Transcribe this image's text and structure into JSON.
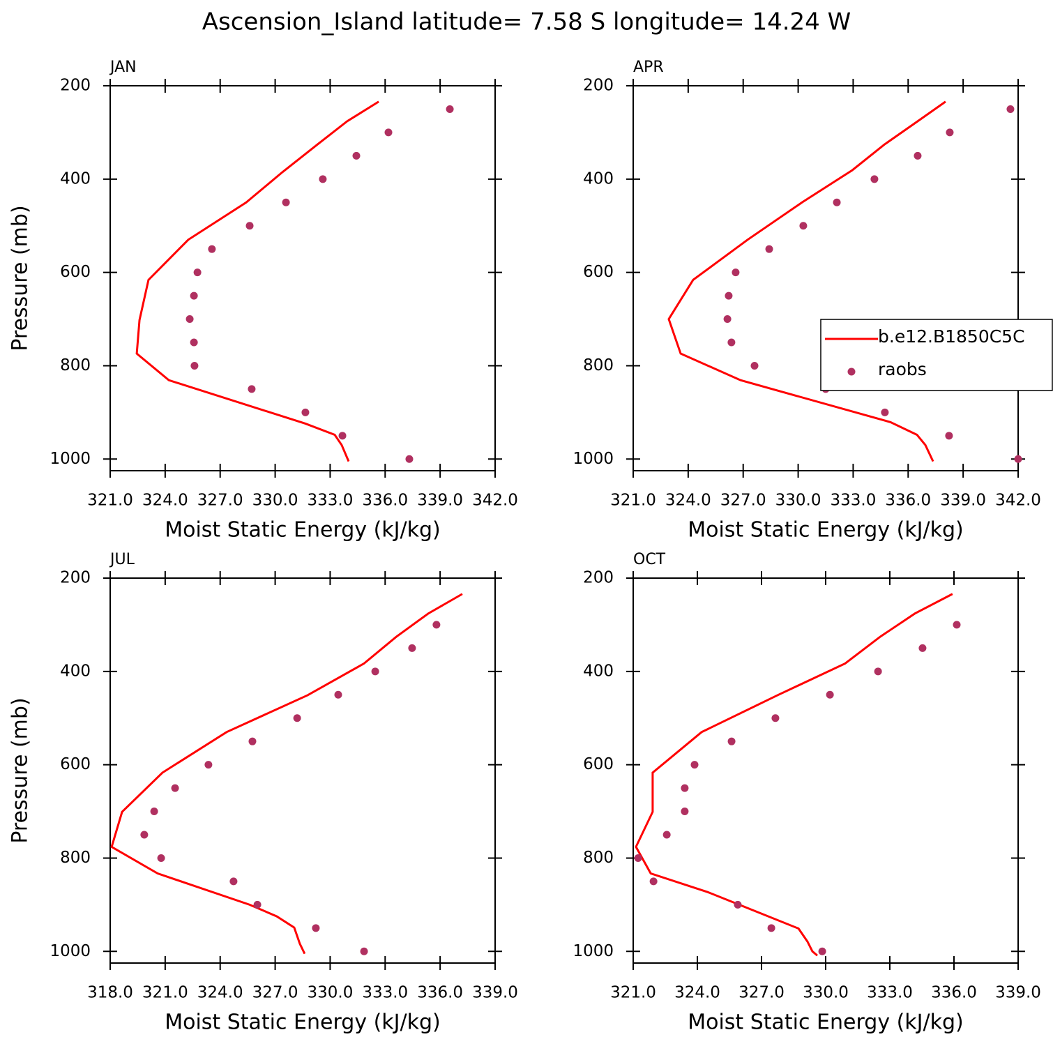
{
  "title": "Ascension_Island  latitude= 7.58 S longitude= 14.24 W",
  "chart_data": [
    {
      "type": "line",
      "title": "JAN",
      "xlabel": "Moist Static Energy (kJ/kg)",
      "ylabel": "Pressure (mb)",
      "xlim": [
        321,
        342
      ],
      "xticks": [
        {
          "value": 321,
          "label": "321.0"
        },
        {
          "value": 324,
          "label": "324.0"
        },
        {
          "value": 327,
          "label": "327.0"
        },
        {
          "value": 330,
          "label": "330.0"
        },
        {
          "value": 333,
          "label": "333.0"
        },
        {
          "value": 336,
          "label": "336.0"
        },
        {
          "value": 339,
          "label": "339.0"
        },
        {
          "value": 342,
          "label": "342.0"
        }
      ],
      "ylim": [
        1025,
        200
      ],
      "yticks": [
        200,
        400,
        600,
        800,
        1000
      ],
      "series": [
        {
          "type": "line",
          "color": "#ff0000",
          "x": [
            335.65,
            333.93,
            332.3,
            330.4,
            328.42,
            325.26,
            323.09,
            322.6,
            322.45,
            324.2,
            331.65,
            333.25,
            333.63,
            334.01
          ],
          "y": [
            234,
            276,
            326,
            385,
            450,
            530,
            616,
            702,
            774,
            831,
            924,
            948,
            970,
            1005
          ]
        },
        {
          "type": "scatter",
          "color": "#b03060",
          "x": [
            339.53,
            336.18,
            334.43,
            332.6,
            330.59,
            328.61,
            326.55,
            325.76,
            325.57,
            325.34,
            325.57,
            325.6,
            328.72,
            331.65,
            333.67,
            337.32
          ],
          "y": [
            250,
            300,
            350,
            400,
            450,
            500,
            550,
            600,
            650,
            700,
            750,
            800,
            850,
            900,
            950,
            1000
          ]
        }
      ]
    },
    {
      "type": "line",
      "title": "APR",
      "xlabel": "Moist Static Energy (kJ/kg)",
      "legend": "right",
      "xlim": [
        321,
        342
      ],
      "xticks": [
        {
          "value": 321,
          "label": "321.0"
        },
        {
          "value": 324,
          "label": "324.0"
        },
        {
          "value": 327,
          "label": "327.0"
        },
        {
          "value": 330,
          "label": "330.0"
        },
        {
          "value": 333,
          "label": "333.0"
        },
        {
          "value": 336,
          "label": "336.0"
        },
        {
          "value": 339,
          "label": "339.0"
        },
        {
          "value": 342,
          "label": "342.0"
        }
      ],
      "ylim": [
        1025,
        200
      ],
      "yticks": [
        200,
        400,
        600,
        800,
        1000
      ],
      "series": [
        {
          "type": "line",
          "name": "b.e12.B1850C5C",
          "color": "#ff0000",
          "x": [
            338.04,
            336.52,
            334.7,
            332.95,
            330.21,
            327.24,
            324.27,
            322.94,
            323.59,
            326.86,
            335.04,
            336.48,
            336.94,
            337.36
          ],
          "y": [
            234,
            276,
            326,
            381,
            450,
            530,
            616,
            700,
            774,
            831,
            921,
            948,
            970,
            1005
          ]
        },
        {
          "type": "scatter",
          "name": "raobs",
          "color": "#b03060",
          "x": [
            341.58,
            338.27,
            336.52,
            334.16,
            332.11,
            330.28,
            328.42,
            326.59,
            326.21,
            326.14,
            326.36,
            327.62,
            331.5,
            334.73,
            338.23,
            342
          ],
          "y": [
            250,
            300,
            350,
            400,
            450,
            500,
            550,
            600,
            650,
            700,
            750,
            800,
            850,
            900,
            950,
            1000
          ]
        }
      ]
    },
    {
      "type": "line",
      "title": "JUL",
      "xlabel": "Moist Static Energy (kJ/kg)",
      "ylabel": "Pressure (mb)",
      "xlim": [
        318,
        339
      ],
      "xticks": [
        {
          "value": 318,
          "label": "318.0"
        },
        {
          "value": 321,
          "label": "321.0"
        },
        {
          "value": 324,
          "label": "324.0"
        },
        {
          "value": 327,
          "label": "327.0"
        },
        {
          "value": 330,
          "label": "330.0"
        },
        {
          "value": 333,
          "label": "333.0"
        },
        {
          "value": 336,
          "label": "336.0"
        },
        {
          "value": 339,
          "label": "339.0"
        }
      ],
      "ylim": [
        1025,
        200
      ],
      "yticks": [
        200,
        400,
        600,
        800,
        1000
      ],
      "series": [
        {
          "type": "line",
          "color": "#ff0000",
          "x": [
            337.21,
            335.35,
            333.6,
            331.85,
            328.77,
            324.35,
            320.85,
            318.65,
            318.08,
            320.59,
            325.61,
            327.09,
            328.04,
            328.35,
            328.61
          ],
          "y": [
            234,
            276,
            326,
            383,
            451,
            530,
            617,
            701,
            776,
            833,
            900,
            925,
            949,
            984,
            1005
          ]
        },
        {
          "type": "scatter",
          "color": "#b03060",
          "x": [
            335.8,
            334.47,
            332.46,
            330.44,
            328.2,
            325.76,
            323.36,
            321.54,
            320.4,
            319.86,
            320.78,
            324.73,
            326.03,
            329.22,
            331.85
          ],
          "y": [
            300,
            350,
            400,
            450,
            500,
            550,
            600,
            650,
            700,
            750,
            800,
            850,
            900,
            950,
            1000
          ]
        }
      ]
    },
    {
      "type": "line",
      "title": "OCT",
      "xlabel": "Moist Static Energy (kJ/kg)",
      "xlim": [
        321,
        339
      ],
      "xticks": [
        {
          "value": 321,
          "label": "321.0"
        },
        {
          "value": 324,
          "label": "324.0"
        },
        {
          "value": 327,
          "label": "327.0"
        },
        {
          "value": 330,
          "label": "330.0"
        },
        {
          "value": 333,
          "label": "333.0"
        },
        {
          "value": 336,
          "label": "336.0"
        },
        {
          "value": 339,
          "label": "339.0"
        }
      ],
      "ylim": [
        1025,
        200
      ],
      "yticks": [
        200,
        400,
        600,
        800,
        1000
      ],
      "series": [
        {
          "type": "line",
          "color": "#ff0000",
          "x": [
            335.93,
            334.17,
            332.54,
            330.91,
            327.75,
            324.2,
            321.91,
            321.91,
            321.13,
            321.82,
            324.49,
            325.96,
            328.73,
            329.15,
            329.38,
            329.61
          ],
          "y": [
            234,
            276,
            326,
            383,
            451,
            530,
            617,
            701,
            776,
            833,
            873,
            900,
            951,
            979,
            1000,
            1009
          ]
        },
        {
          "type": "scatter",
          "color": "#b03060",
          "x": [
            336.13,
            334.53,
            332.45,
            330.2,
            327.65,
            325.6,
            323.87,
            323.41,
            323.41,
            322.57,
            321.23,
            321.95,
            325.89,
            327.46,
            329.84
          ],
          "y": [
            300,
            350,
            400,
            450,
            500,
            550,
            600,
            650,
            700,
            750,
            800,
            850,
            900,
            950,
            1000
          ]
        }
      ]
    }
  ]
}
